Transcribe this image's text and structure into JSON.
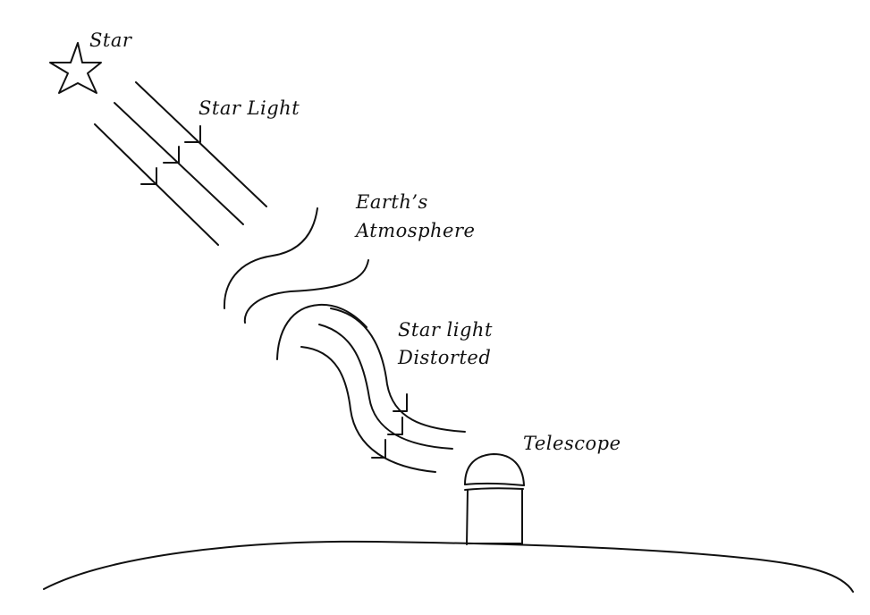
{
  "labels": {
    "star": "Star",
    "star_light": "Star Light",
    "atmosphere_line1": "Earth’s",
    "atmosphere_line2": "Atmosphere",
    "distorted_line1": "Star light",
    "distorted_line2": "Distorted",
    "telescope": "Telescope"
  },
  "colors": {
    "ink": "#111111",
    "background": "#ffffff"
  },
  "icons": {
    "star": "six-pointed-star-icon",
    "telescope": "observatory-dome-icon"
  }
}
